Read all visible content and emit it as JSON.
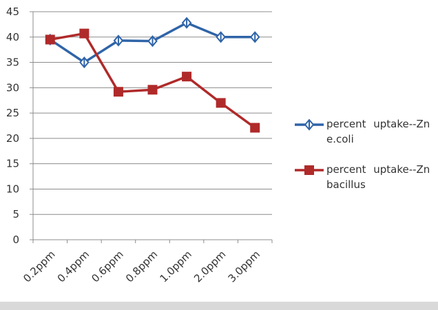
{
  "chart_data": {
    "type": "line",
    "categories": [
      "0.2ppm",
      "0.4ppm",
      "0.6ppm",
      "0.8ppm",
      "1.0ppm",
      "2.0ppm",
      "3.0ppm"
    ],
    "series": [
      {
        "name": "percent uptake--Zn e.coli",
        "color": "#2f64a8",
        "values": [
          39.5,
          35,
          39.3,
          39.2,
          42.8,
          40,
          40
        ]
      },
      {
        "name": "percent uptake--Zn bacillus",
        "color": "#b02a2a",
        "values": [
          39.5,
          40.7,
          29.2,
          29.6,
          32.2,
          27,
          22.1
        ]
      }
    ],
    "ylim": [
      0,
      45
    ],
    "yticks": [
      0,
      5,
      10,
      15,
      20,
      25,
      30,
      35,
      40,
      45
    ],
    "grid": true
  }
}
